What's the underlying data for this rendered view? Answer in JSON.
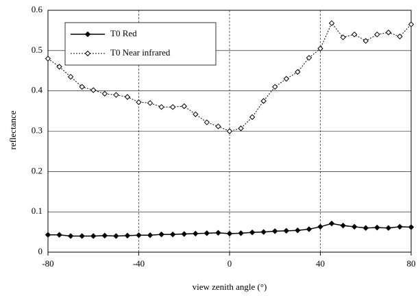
{
  "chart_data": {
    "type": "line",
    "xlabel": "view zenith angle (°)",
    "ylabel": "reflectance",
    "x": [
      -80,
      -75,
      -70,
      -65,
      -60,
      -55,
      -50,
      -45,
      -40,
      -35,
      -30,
      -25,
      -20,
      -15,
      -10,
      -5,
      0,
      5,
      10,
      15,
      20,
      25,
      30,
      35,
      40,
      45,
      50,
      55,
      60,
      65,
      70,
      75,
      80
    ],
    "series": [
      {
        "name": "T0 Red",
        "color": "#000000",
        "marker": "filled",
        "dash": "solid",
        "values": [
          0.043,
          0.043,
          0.04,
          0.04,
          0.04,
          0.041,
          0.04,
          0.041,
          0.042,
          0.042,
          0.044,
          0.044,
          0.045,
          0.046,
          0.047,
          0.048,
          0.046,
          0.047,
          0.049,
          0.05,
          0.052,
          0.053,
          0.054,
          0.057,
          0.063,
          0.071,
          0.066,
          0.063,
          0.06,
          0.061,
          0.06,
          0.063,
          0.062
        ]
      },
      {
        "name": "T0 Near infrared",
        "color": "#000000",
        "marker": "hollow",
        "dash": "dotted",
        "values": [
          0.48,
          0.46,
          0.435,
          0.41,
          0.402,
          0.393,
          0.39,
          0.385,
          0.372,
          0.37,
          0.36,
          0.36,
          0.362,
          0.342,
          0.322,
          0.312,
          0.3,
          0.307,
          0.335,
          0.375,
          0.41,
          0.43,
          0.447,
          0.482,
          0.505,
          0.568,
          0.533,
          0.54,
          0.524,
          0.54,
          0.545,
          0.535,
          0.565
        ]
      }
    ],
    "xlim": [
      -80,
      80
    ],
    "xticks": [
      -80,
      -40,
      0,
      40,
      80
    ],
    "ylim": [
      0,
      0.6
    ],
    "yticks": [
      0,
      0.1,
      0.2,
      0.3,
      0.4,
      0.5,
      0.6
    ],
    "grid": true,
    "legend": "upper left"
  }
}
